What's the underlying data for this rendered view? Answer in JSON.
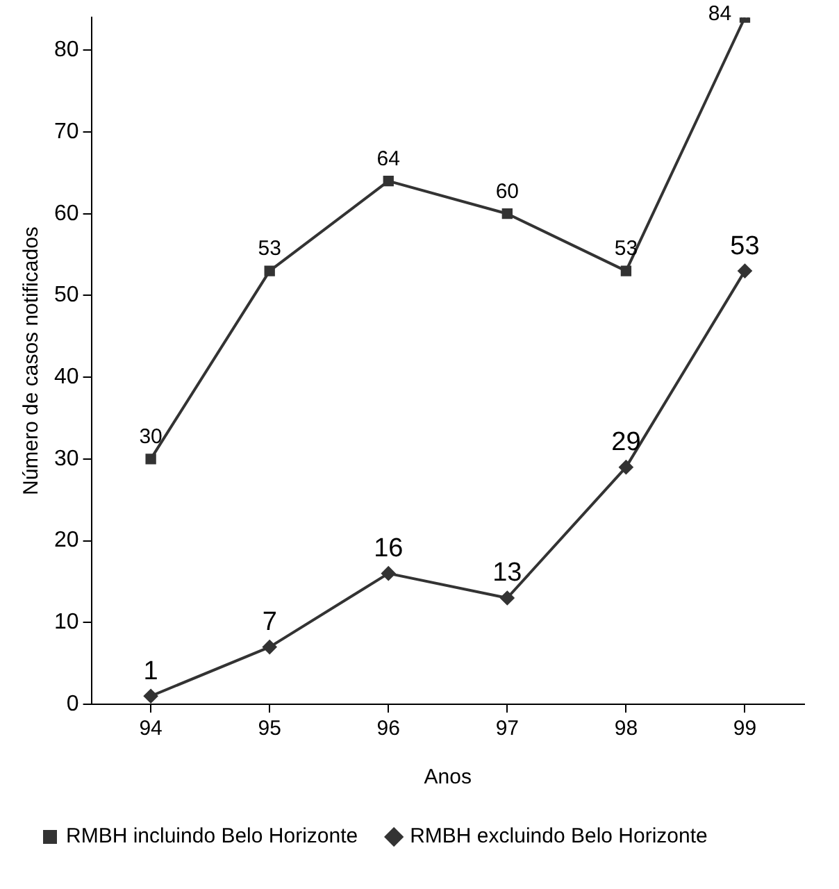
{
  "chart_data": {
    "type": "line",
    "xlabel": "Anos",
    "ylabel": "Número de casos notificados",
    "categories": [
      "94",
      "95",
      "96",
      "97",
      "98",
      "99"
    ],
    "series": [
      {
        "name": "RMBH incluindo Belo Horizonte",
        "color": "#333333",
        "marker": "square",
        "values": [
          30,
          53,
          64,
          60,
          53,
          84
        ]
      },
      {
        "name": "RMBH excluindo Belo Horizonte",
        "color": "#333333",
        "marker": "diamond",
        "values": [
          1,
          7,
          16,
          13,
          29,
          53
        ]
      }
    ],
    "ylim": [
      0,
      84
    ],
    "yticks": [
      0,
      10,
      20,
      30,
      40,
      50,
      60,
      70,
      80
    ],
    "grid": false,
    "legend": "bottom",
    "data_labels": true,
    "line_style": "solid"
  }
}
